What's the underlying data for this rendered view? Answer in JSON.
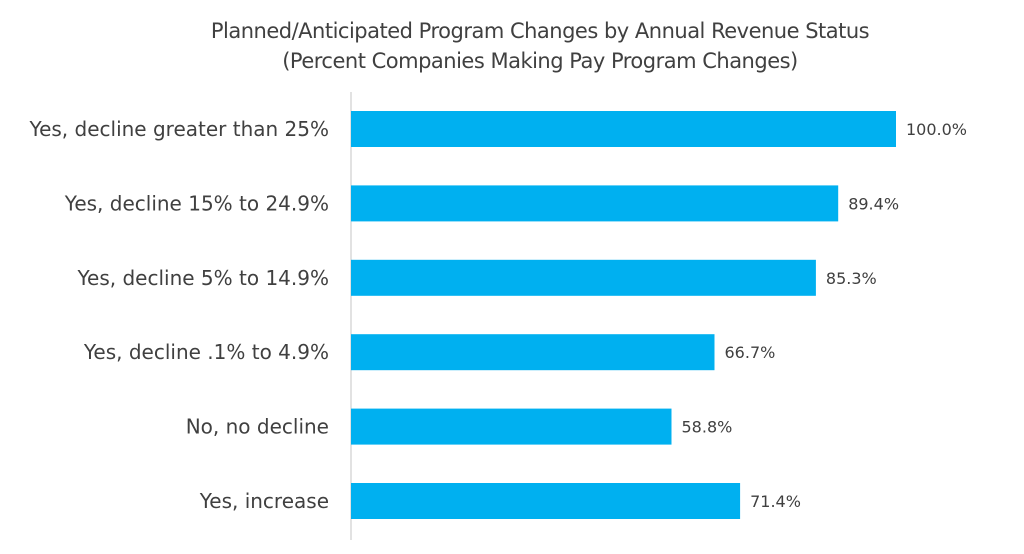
{
  "chart_data": {
    "type": "bar",
    "orientation": "horizontal",
    "title": "Planned/Anticipated Program Changes by Annual Revenue Status",
    "subtitle": "(Percent Companies Making Pay Program Changes)",
    "categories": [
      "Yes, decline greater than 25%",
      "Yes, decline 15% to 24.9%",
      "Yes, decline 5% to 14.9%",
      "Yes, decline .1% to 4.9%",
      "No, no decline",
      "Yes, increase"
    ],
    "values": [
      100.0,
      89.4,
      85.3,
      66.7,
      58.8,
      71.4
    ],
    "value_labels": [
      "100.0%",
      "89.4%",
      "85.3%",
      "66.7%",
      "58.8%",
      "71.4%"
    ],
    "xlim": [
      0,
      100
    ],
    "grid": false,
    "legend": "none",
    "bar_color": "#00B0F0",
    "axis_color": "#D9D9D9",
    "text_color": "#404040"
  }
}
